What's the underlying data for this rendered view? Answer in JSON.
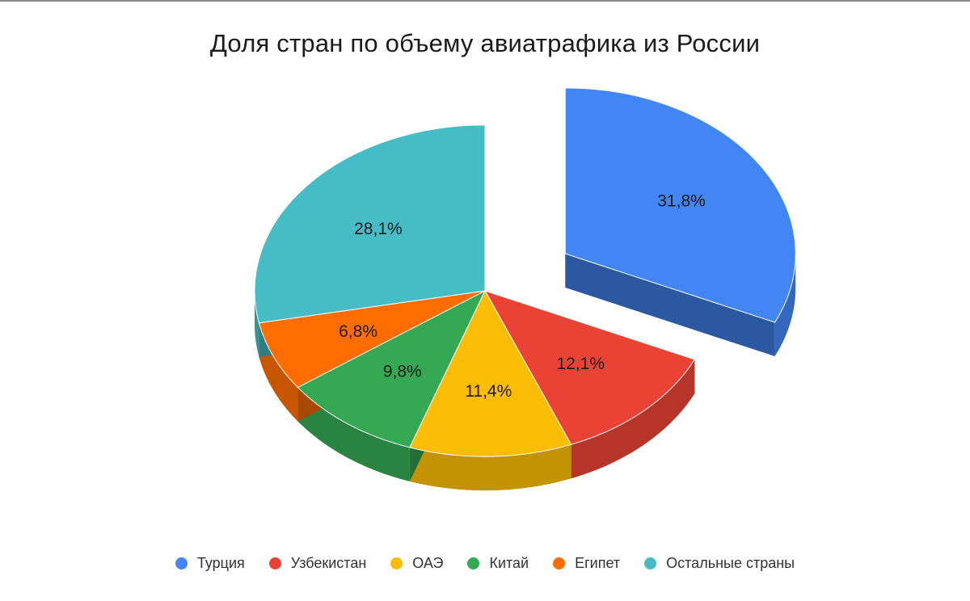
{
  "chart_data": {
    "type": "pie",
    "title": "Доля стран по объему авиатрафика из России",
    "categories": [
      "Турция",
      "Узбекистан",
      "ОАЭ",
      "Китай",
      "Египет",
      "Остальные страны"
    ],
    "values": [
      31.8,
      12.1,
      11.4,
      9.8,
      6.8,
      28.1
    ],
    "labels": [
      "31,8%",
      "12,1%",
      "11,4%",
      "9,8%",
      "6,8%",
      "28,1%"
    ],
    "colors": [
      "#4285f4",
      "#ea4335",
      "#fbbc04",
      "#34a853",
      "#ff6d01",
      "#46bdc6"
    ],
    "exploded": [
      "Турция"
    ],
    "style": "3d",
    "legend_position": "bottom"
  }
}
